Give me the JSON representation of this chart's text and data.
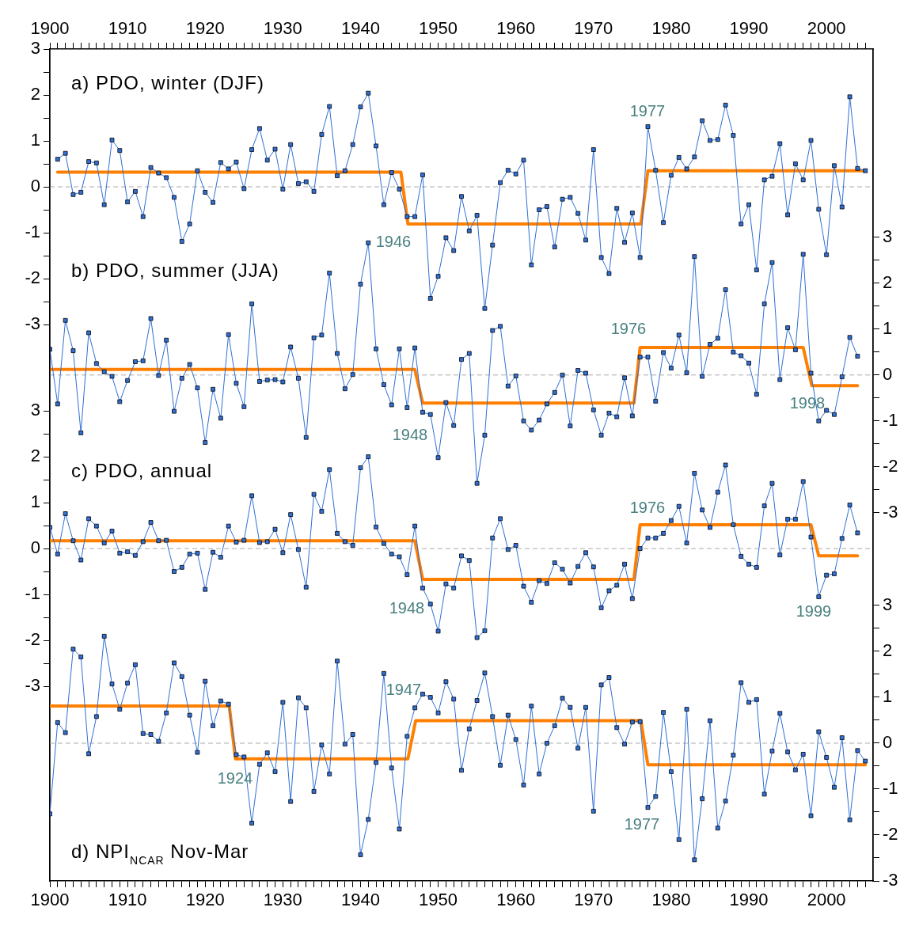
{
  "chart_data": [
    {
      "type": "line",
      "title": "a) PDO, winter (DJF)",
      "xlim": [
        1900,
        2006
      ],
      "x2lim": [
        1900,
        2006
      ],
      "x2ticks": [
        1900,
        {
          "value": 1901,
          "label": null
        },
        {
          "value": 1902,
          "label": null
        },
        {
          "value": 1903,
          "label": null
        },
        {
          "value": 1904,
          "label": null
        },
        {
          "value": 1905,
          "label": null
        },
        {
          "value": 1906,
          "label": null
        },
        {
          "value": 1907,
          "label": null
        },
        {
          "value": 1908,
          "label": null
        },
        {
          "value": 1909,
          "label": null
        },
        1910,
        {
          "value": 1911,
          "label": null
        },
        {
          "value": 1912,
          "label": null
        },
        {
          "value": 1913,
          "label": null
        },
        {
          "value": 1914,
          "label": null
        },
        {
          "value": 1915,
          "label": null
        },
        {
          "value": 1916,
          "label": null
        },
        {
          "value": 1917,
          "label": null
        },
        {
          "value": 1918,
          "label": null
        },
        {
          "value": 1919,
          "label": null
        },
        1920,
        {
          "value": 1921,
          "label": null
        },
        {
          "value": 1922,
          "label": null
        },
        {
          "value": 1923,
          "label": null
        },
        {
          "value": 1924,
          "label": null
        },
        {
          "value": 1925,
          "label": null
        },
        {
          "value": 1926,
          "label": null
        },
        {
          "value": 1927,
          "label": null
        },
        {
          "value": 1928,
          "label": null
        },
        {
          "value": 1929,
          "label": null
        },
        1930,
        {
          "value": 1931,
          "label": null
        },
        {
          "value": 1932,
          "label": null
        },
        {
          "value": 1933,
          "label": null
        },
        {
          "value": 1934,
          "label": null
        },
        {
          "value": 1935,
          "label": null
        },
        {
          "value": 1936,
          "label": null
        },
        {
          "value": 1937,
          "label": null
        },
        {
          "value": 1938,
          "label": null
        },
        {
          "value": 1939,
          "label": null
        },
        1940,
        {
          "value": 1941,
          "label": null
        },
        {
          "value": 1942,
          "label": null
        },
        {
          "value": 1943,
          "label": null
        },
        {
          "value": 1944,
          "label": null
        },
        {
          "value": 1945,
          "label": null
        },
        {
          "value": 1946,
          "label": null
        },
        {
          "value": 1947,
          "label": null
        },
        {
          "value": 1948,
          "label": null
        },
        {
          "value": 1949,
          "label": null
        },
        1950,
        {
          "value": 1951,
          "label": null
        },
        {
          "value": 1952,
          "label": null
        },
        {
          "value": 1953,
          "label": null
        },
        {
          "value": 1954,
          "label": null
        },
        {
          "value": 1955,
          "label": null
        },
        {
          "value": 1956,
          "label": null
        },
        {
          "value": 1957,
          "label": null
        },
        {
          "value": 1958,
          "label": null
        },
        {
          "value": 1959,
          "label": null
        },
        1960,
        {
          "value": 1961,
          "label": null
        },
        {
          "value": 1962,
          "label": null
        },
        {
          "value": 1963,
          "label": null
        },
        {
          "value": 1964,
          "label": null
        },
        {
          "value": 1965,
          "label": null
        },
        {
          "value": 1966,
          "label": null
        },
        {
          "value": 1967,
          "label": null
        },
        {
          "value": 1968,
          "label": null
        },
        {
          "value": 1969,
          "label": null
        },
        1970,
        {
          "value": 1971,
          "label": null
        },
        {
          "value": 1972,
          "label": null
        },
        {
          "value": 1973,
          "label": null
        },
        {
          "value": 1974,
          "label": null
        },
        {
          "value": 1975,
          "label": null
        },
        {
          "value": 1976,
          "label": null
        },
        {
          "value": 1977,
          "label": null
        },
        {
          "value": 1978,
          "label": null
        },
        {
          "value": 1979,
          "label": null
        },
        1980,
        {
          "value": 1981,
          "label": null
        },
        {
          "value": 1982,
          "label": null
        },
        {
          "value": 1983,
          "label": null
        },
        {
          "value": 1984,
          "label": null
        },
        {
          "value": 1985,
          "label": null
        },
        {
          "value": 1986,
          "label": null
        },
        {
          "value": 1987,
          "label": null
        },
        {
          "value": 1988,
          "label": null
        },
        {
          "value": 1989,
          "label": null
        },
        1990,
        {
          "value": 1991,
          "label": null
        },
        {
          "value": 1992,
          "label": null
        },
        {
          "value": 1993,
          "label": null
        },
        {
          "value": 1994,
          "label": null
        },
        {
          "value": 1995,
          "label": null
        },
        {
          "value": 1996,
          "label": null
        },
        {
          "value": 1997,
          "label": null
        },
        {
          "value": 1998,
          "label": null
        },
        {
          "value": 1999,
          "label": null
        },
        2000,
        {
          "value": 2001,
          "label": null
        },
        {
          "value": 2002,
          "label": null
        },
        {
          "value": 2003,
          "label": null
        },
        {
          "value": 2004,
          "label": null
        },
        {
          "value": 2005,
          "label": null
        }
      ],
      "ylim": [
        -15.12,
        3
      ],
      "yticks": [
        3,
        {
          "value": 2.5,
          "label": null
        },
        2,
        {
          "value": 1.5,
          "label": null
        },
        1,
        {
          "value": 0.5,
          "label": null
        },
        0,
        {
          "value": -0.5,
          "label": null
        },
        -1,
        {
          "value": -1.5,
          "label": null
        },
        -2,
        {
          "value": -2.5,
          "label": null
        },
        -3
      ],
      "tick_labels": "y",
      "series": [
        {
          "color": "#2f6fd6",
          "marker": "square",
          "x": [
            1901,
            1902,
            1903,
            1904,
            1905,
            1906,
            1907,
            1908,
            1909,
            1910,
            1911,
            1912,
            1913,
            1914,
            1915,
            1916,
            1917,
            1918,
            1919,
            1920,
            1921,
            1922,
            1923,
            1924,
            1925,
            1926,
            1927,
            1928,
            1929,
            1930,
            1931,
            1932,
            1933,
            1934,
            1935,
            1936,
            1937,
            1938,
            1939,
            1940,
            1941,
            1942,
            1943,
            1944,
            1945,
            1946,
            1947,
            1948,
            1949,
            1950,
            1951,
            1952,
            1953,
            1954,
            1955,
            1956,
            1957,
            1958,
            1959,
            1960,
            1961,
            1962,
            1963,
            1964,
            1965,
            1966,
            1967,
            1968,
            1969,
            1970,
            1971,
            1972,
            1973,
            1974,
            1975,
            1976,
            1977,
            1978,
            1979,
            1980,
            1981,
            1982,
            1983,
            1984,
            1985,
            1986,
            1987,
            1988,
            1989,
            1990,
            1991,
            1992,
            1993,
            1994,
            1995,
            1996,
            1997,
            1998,
            1999,
            2000,
            2001,
            2002,
            2003,
            2004,
            2005
          ],
          "values": [
            0.6,
            0.73,
            -0.17,
            -0.12,
            0.55,
            0.52,
            -0.39,
            1.02,
            0.79,
            -0.33,
            -0.1,
            -0.65,
            0.42,
            0.3,
            0.2,
            -0.23,
            -1.19,
            -0.81,
            0.35,
            -0.12,
            -0.34,
            0.53,
            0.39,
            0.54,
            -0.04,
            0.81,
            1.27,
            0.58,
            0.82,
            -0.05,
            0.92,
            0.07,
            0.11,
            -0.1,
            1.14,
            1.75,
            0.24,
            0.35,
            0.92,
            1.74,
            2.04,
            0.89,
            -0.39,
            0.31,
            -0.05,
            -0.65,
            -0.65,
            0.26,
            -2.43,
            -1.95,
            -1.11,
            -1.39,
            -0.21,
            -0.96,
            -0.62,
            -2.65,
            -1.27,
            0.09,
            0.36,
            0.28,
            0.58,
            -1.7,
            -0.5,
            -0.43,
            -1.31,
            -0.27,
            -0.23,
            -0.58,
            -1.16,
            0.81,
            -1.54,
            -1.89,
            -0.47,
            -1.21,
            -0.57,
            -1.54,
            1.31,
            0.36,
            -0.78,
            0.25,
            0.64,
            0.39,
            0.65,
            1.44,
            1.01,
            1.03,
            1.78,
            1.12,
            -0.81,
            -0.39,
            -1.81,
            0.15,
            0.23,
            0.94,
            -0.61,
            0.5,
            0.15,
            1.01,
            -0.49,
            -1.48,
            0.46,
            -0.44,
            1.96,
            0.4,
            0.35
          ]
        },
        {
          "type": "line",
          "color": "#ff7f00",
          "marker": "none",
          "x": [
            1901,
            1945.2,
            1946.1,
            1976.1,
            1977,
            2005
          ],
          "values": [
            0.32,
            0.32,
            -0.81,
            -0.81,
            0.35,
            0.35
          ]
        }
      ],
      "ref_lines": [
        {
          "axis": "y",
          "value": 0,
          "color": "#aaaaaa",
          "line_style": "dashed"
        }
      ],
      "annotations": [
        "1946",
        "1977"
      ]
    },
    {
      "type": "line",
      "title": "b) PDO, summer (JJA)",
      "xlim": [
        1900,
        2006
      ],
      "y2lim": [
        -11.02,
        7.1
      ],
      "y2ticks": [
        3,
        {
          "value": 2.5,
          "label": null
        },
        2,
        {
          "value": 1.5,
          "label": null
        },
        1,
        {
          "value": 0.5,
          "label": null
        },
        0,
        {
          "value": -0.5,
          "label": null
        },
        -1,
        {
          "value": -1.5,
          "label": null
        },
        -2,
        {
          "value": -2.5,
          "label": null
        },
        -3
      ],
      "tick_labels": "y",
      "series": [
        {
          "color": "#2f6fd6",
          "marker": "square",
          "axis": "y2",
          "x": [
            1900,
            1901,
            1902,
            1903,
            1904,
            1905,
            1906,
            1907,
            1908,
            1909,
            1910,
            1911,
            1912,
            1913,
            1914,
            1915,
            1916,
            1917,
            1918,
            1919,
            1920,
            1921,
            1922,
            1923,
            1924,
            1925,
            1926,
            1927,
            1928,
            1929,
            1930,
            1931,
            1932,
            1933,
            1934,
            1935,
            1936,
            1937,
            1938,
            1939,
            1940,
            1941,
            1942,
            1943,
            1944,
            1945,
            1946,
            1947,
            1948,
            1949,
            1950,
            1951,
            1952,
            1953,
            1954,
            1955,
            1956,
            1957,
            1958,
            1959,
            1960,
            1961,
            1962,
            1963,
            1964,
            1965,
            1966,
            1967,
            1968,
            1969,
            1970,
            1971,
            1972,
            1973,
            1974,
            1975,
            1976,
            1977,
            1978,
            1979,
            1980,
            1981,
            1982,
            1983,
            1984,
            1985,
            1986,
            1987,
            1988,
            1989,
            1990,
            1991,
            1992,
            1993,
            1994,
            1995,
            1996,
            1997,
            1998,
            1999,
            2000,
            2001,
            2002,
            2003,
            2004
          ],
          "values": [
            0.56,
            -0.63,
            1.19,
            0.53,
            -1.26,
            0.92,
            0.25,
            0.07,
            -0.03,
            -0.58,
            -0.12,
            0.29,
            0.31,
            1.23,
            -0.01,
            0.76,
            -0.79,
            -0.07,
            0.23,
            -0.28,
            -1.47,
            -0.31,
            -0.94,
            0.88,
            -0.18,
            -0.69,
            1.55,
            -0.14,
            -0.11,
            -0.1,
            -0.15,
            0.61,
            -0.07,
            -1.36,
            0.81,
            0.87,
            2.22,
            0.47,
            -0.3,
            0.01,
            1.98,
            2.88,
            0.57,
            -0.21,
            -0.65,
            0.57,
            -0.71,
            0.59,
            -0.81,
            -0.86,
            -1.8,
            -0.6,
            -1.1,
            0.34,
            0.47,
            -2.36,
            -1.31,
            0.97,
            1.06,
            -0.24,
            -0.02,
            -1.0,
            -1.2,
            -0.98,
            -0.63,
            -0.38,
            0.0,
            -1.11,
            0.1,
            0.04,
            -0.76,
            -1.31,
            -0.83,
            -0.91,
            -0.06,
            -0.89,
            0.39,
            0.39,
            -0.57,
            0.49,
            0.15,
            0.87,
            0.05,
            2.58,
            -0.03,
            0.67,
            0.8,
            1.86,
            0.5,
            0.42,
            0.26,
            -0.42,
            1.55,
            2.45,
            -0.1,
            1.03,
            0.55,
            2.63,
            0.04,
            -1.0,
            -0.77,
            -0.86,
            -0.04,
            0.82,
            0.41
          ]
        },
        {
          "type": "line",
          "color": "#ff7f00",
          "marker": "none",
          "axis": "y2",
          "x": [
            1900,
            1947,
            1948,
            1975.2,
            1976,
            1997,
            1998.1,
            2004
          ],
          "values": [
            0.12,
            0.12,
            -0.61,
            -0.61,
            0.6,
            0.6,
            -0.23,
            -0.23
          ]
        }
      ],
      "ref_lines": [
        {
          "axis": "y2",
          "value": 0,
          "color": "#aaaaaa",
          "line_style": "dashed"
        }
      ],
      "annotations": [
        "1948",
        "1976",
        "1998"
      ]
    },
    {
      "type": "line",
      "title": "c) PDO, annual",
      "xlim": [
        1900,
        2006
      ],
      "ylim": [
        -7.24,
        10.88
      ],
      "yticks": [
        3,
        {
          "value": 2.5,
          "label": null
        },
        2,
        {
          "value": 1.5,
          "label": null
        },
        1,
        {
          "value": 0.5,
          "label": null
        },
        0,
        {
          "value": -0.5,
          "label": null
        },
        -1,
        {
          "value": -1.5,
          "label": null
        },
        -2,
        {
          "value": -2.5,
          "label": null
        },
        -3
      ],
      "tick_labels": "y",
      "series": [
        {
          "color": "#2f6fd6",
          "marker": "square",
          "x": [
            1900,
            1901,
            1902,
            1903,
            1904,
            1905,
            1906,
            1907,
            1908,
            1909,
            1910,
            1911,
            1912,
            1913,
            1914,
            1915,
            1916,
            1917,
            1918,
            1919,
            1920,
            1921,
            1922,
            1923,
            1924,
            1925,
            1926,
            1927,
            1928,
            1929,
            1930,
            1931,
            1932,
            1933,
            1934,
            1935,
            1936,
            1937,
            1938,
            1939,
            1940,
            1941,
            1942,
            1943,
            1944,
            1945,
            1946,
            1947,
            1948,
            1949,
            1950,
            1951,
            1952,
            1953,
            1954,
            1955,
            1956,
            1957,
            1958,
            1959,
            1960,
            1961,
            1962,
            1963,
            1964,
            1965,
            1966,
            1967,
            1968,
            1969,
            1970,
            1971,
            1972,
            1973,
            1974,
            1975,
            1976,
            1977,
            1978,
            1979,
            1980,
            1981,
            1982,
            1983,
            1984,
            1985,
            1986,
            1987,
            1988,
            1989,
            1990,
            1991,
            1992,
            1993,
            1994,
            1995,
            1996,
            1997,
            1998,
            1999,
            2000,
            2001,
            2002,
            2003,
            2004
          ],
          "values": [
            0.46,
            -0.12,
            0.76,
            0.17,
            -0.25,
            0.65,
            0.49,
            0.12,
            0.38,
            -0.1,
            -0.07,
            -0.15,
            0.15,
            0.57,
            0.17,
            0.18,
            -0.5,
            -0.41,
            -0.12,
            -0.1,
            -0.89,
            -0.08,
            -0.19,
            0.49,
            0.14,
            0.18,
            1.15,
            0.13,
            0.15,
            0.42,
            -0.09,
            0.74,
            -0.02,
            -0.84,
            1.18,
            0.81,
            1.72,
            0.33,
            0.15,
            0.07,
            1.76,
            2.0,
            0.47,
            0.11,
            -0.12,
            -0.18,
            -0.57,
            0.49,
            -0.86,
            -1.21,
            -1.8,
            -0.77,
            -0.86,
            -0.16,
            -0.26,
            -1.94,
            -1.79,
            0.23,
            0.65,
            -0.02,
            0.07,
            -0.82,
            -1.17,
            -0.7,
            -0.76,
            -0.31,
            -0.45,
            -0.75,
            -0.39,
            -0.09,
            -0.4,
            -1.29,
            -0.92,
            -0.8,
            -0.34,
            -1.09,
            0.0,
            0.23,
            0.23,
            0.33,
            0.61,
            0.92,
            0.12,
            1.64,
            0.84,
            0.46,
            1.23,
            1.82,
            0.52,
            -0.17,
            -0.34,
            -0.41,
            0.93,
            1.42,
            -0.14,
            0.64,
            0.64,
            1.46,
            0.25,
            -1.05,
            -0.58,
            -0.55,
            0.22,
            0.95,
            0.34
          ]
        },
        {
          "type": "line",
          "color": "#ff7f00",
          "marker": "none",
          "x": [
            1900,
            1947,
            1948,
            1975.2,
            1976,
            1998,
            1999,
            2004
          ],
          "values": [
            0.17,
            0.17,
            -0.67,
            -0.67,
            0.52,
            0.52,
            -0.16,
            -0.16
          ]
        }
      ],
      "ref_lines": [
        {
          "axis": "y",
          "value": 0,
          "color": "#aaaaaa",
          "line_style": "dashed"
        }
      ],
      "annotations": [
        "1948",
        "1976",
        "1999"
      ]
    },
    {
      "type": "line",
      "title": "d) NPI$_{NCAR}$ Nov-Mar",
      "xlim": [
        1900,
        2006
      ],
      "xticks": [
        1900,
        {
          "value": 1901,
          "label": null
        },
        {
          "value": 1902,
          "label": null
        },
        {
          "value": 1903,
          "label": null
        },
        {
          "value": 1904,
          "label": null
        },
        {
          "value": 1905,
          "label": null
        },
        {
          "value": 1906,
          "label": null
        },
        {
          "value": 1907,
          "label": null
        },
        {
          "value": 1908,
          "label": null
        },
        {
          "value": 1909,
          "label": null
        },
        1910,
        {
          "value": 1911,
          "label": null
        },
        {
          "value": 1912,
          "label": null
        },
        {
          "value": 1913,
          "label": null
        },
        {
          "value": 1914,
          "label": null
        },
        {
          "value": 1915,
          "label": null
        },
        {
          "value": 1916,
          "label": null
        },
        {
          "value": 1917,
          "label": null
        },
        {
          "value": 1918,
          "label": null
        },
        {
          "value": 1919,
          "label": null
        },
        1920,
        {
          "value": 1921,
          "label": null
        },
        {
          "value": 1922,
          "label": null
        },
        {
          "value": 1923,
          "label": null
        },
        {
          "value": 1924,
          "label": null
        },
        {
          "value": 1925,
          "label": null
        },
        {
          "value": 1926,
          "label": null
        },
        {
          "value": 1927,
          "label": null
        },
        {
          "value": 1928,
          "label": null
        },
        {
          "value": 1929,
          "label": null
        },
        1930,
        {
          "value": 1931,
          "label": null
        },
        {
          "value": 1932,
          "label": null
        },
        {
          "value": 1933,
          "label": null
        },
        {
          "value": 1934,
          "label": null
        },
        {
          "value": 1935,
          "label": null
        },
        {
          "value": 1936,
          "label": null
        },
        {
          "value": 1937,
          "label": null
        },
        {
          "value": 1938,
          "label": null
        },
        {
          "value": 1939,
          "label": null
        },
        1940,
        {
          "value": 1941,
          "label": null
        },
        {
          "value": 1942,
          "label": null
        },
        {
          "value": 1943,
          "label": null
        },
        {
          "value": 1944,
          "label": null
        },
        {
          "value": 1945,
          "label": null
        },
        {
          "value": 1946,
          "label": null
        },
        {
          "value": 1947,
          "label": null
        },
        {
          "value": 1948,
          "label": null
        },
        {
          "value": 1949,
          "label": null
        },
        1950,
        {
          "value": 1951,
          "label": null
        },
        {
          "value": 1952,
          "label": null
        },
        {
          "value": 1953,
          "label": null
        },
        {
          "value": 1954,
          "label": null
        },
        {
          "value": 1955,
          "label": null
        },
        {
          "value": 1956,
          "label": null
        },
        {
          "value": 1957,
          "label": null
        },
        {
          "value": 1958,
          "label": null
        },
        {
          "value": 1959,
          "label": null
        },
        1960,
        {
          "value": 1961,
          "label": null
        },
        {
          "value": 1962,
          "label": null
        },
        {
          "value": 1963,
          "label": null
        },
        {
          "value": 1964,
          "label": null
        },
        {
          "value": 1965,
          "label": null
        },
        {
          "value": 1966,
          "label": null
        },
        {
          "value": 1967,
          "label": null
        },
        {
          "value": 1968,
          "label": null
        },
        {
          "value": 1969,
          "label": null
        },
        1970,
        {
          "value": 1971,
          "label": null
        },
        {
          "value": 1972,
          "label": null
        },
        {
          "value": 1973,
          "label": null
        },
        {
          "value": 1974,
          "label": null
        },
        {
          "value": 1975,
          "label": null
        },
        {
          "value": 1976,
          "label": null
        },
        {
          "value": 1977,
          "label": null
        },
        {
          "value": 1978,
          "label": null
        },
        {
          "value": 1979,
          "label": null
        },
        1980,
        {
          "value": 1981,
          "label": null
        },
        {
          "value": 1982,
          "label": null
        },
        {
          "value": 1983,
          "label": null
        },
        {
          "value": 1984,
          "label": null
        },
        {
          "value": 1985,
          "label": null
        },
        {
          "value": 1986,
          "label": null
        },
        {
          "value": 1987,
          "label": null
        },
        {
          "value": 1988,
          "label": null
        },
        {
          "value": 1989,
          "label": null
        },
        1990,
        {
          "value": 1991,
          "label": null
        },
        {
          "value": 1992,
          "label": null
        },
        {
          "value": 1993,
          "label": null
        },
        {
          "value": 1994,
          "label": null
        },
        {
          "value": 1995,
          "label": null
        },
        {
          "value": 1996,
          "label": null
        },
        {
          "value": 1997,
          "label": null
        },
        {
          "value": 1998,
          "label": null
        },
        {
          "value": 1999,
          "label": null
        },
        2000,
        {
          "value": 2001,
          "label": null
        },
        {
          "value": 2002,
          "label": null
        },
        {
          "value": 2003,
          "label": null
        },
        {
          "value": 2004,
          "label": null
        },
        {
          "value": 2005,
          "label": null
        }
      ],
      "y2lim": [
        -3,
        15.12
      ],
      "y2ticks": [
        3,
        {
          "value": 2.5,
          "label": null
        },
        2,
        {
          "value": 1.5,
          "label": null
        },
        1,
        {
          "value": 0.5,
          "label": null
        },
        0,
        {
          "value": -0.5,
          "label": null
        },
        -1,
        {
          "value": -1.5,
          "label": null
        },
        -2,
        {
          "value": -2.5,
          "label": null
        },
        -3
      ],
      "series": [
        {
          "color": "#2f6fd6",
          "marker": "square",
          "axis": "y2",
          "x": [
            1900,
            1901,
            1902,
            1903,
            1904,
            1905,
            1906,
            1907,
            1908,
            1909,
            1910,
            1911,
            1912,
            1913,
            1914,
            1915,
            1916,
            1917,
            1918,
            1919,
            1920,
            1921,
            1922,
            1923,
            1924,
            1925,
            1926,
            1927,
            1928,
            1929,
            1930,
            1931,
            1932,
            1933,
            1934,
            1935,
            1936,
            1937,
            1938,
            1939,
            1940,
            1941,
            1942,
            1943,
            1944,
            1945,
            1946,
            1947,
            1948,
            1949,
            1950,
            1951,
            1952,
            1953,
            1954,
            1955,
            1956,
            1957,
            1958,
            1959,
            1960,
            1961,
            1962,
            1963,
            1964,
            1965,
            1966,
            1967,
            1968,
            1969,
            1970,
            1971,
            1972,
            1973,
            1974,
            1975,
            1976,
            1977,
            1978,
            1979,
            1980,
            1981,
            1982,
            1983,
            1984,
            1985,
            1986,
            1987,
            1988,
            1989,
            1990,
            1991,
            1992,
            1993,
            1994,
            1995,
            1996,
            1997,
            1998,
            1999,
            2000,
            2001,
            2002,
            2003,
            2004,
            2005
          ],
          "values": [
            -1.54,
            0.45,
            0.23,
            2.05,
            1.88,
            -0.23,
            0.58,
            2.33,
            1.29,
            0.74,
            1.31,
            1.71,
            0.21,
            0.19,
            0.04,
            0.66,
            1.75,
            1.45,
            0.61,
            -0.2,
            1.35,
            0.38,
            0.92,
            0.85,
            -0.25,
            -0.3,
            -1.74,
            -0.46,
            -0.21,
            -0.62,
            0.89,
            -1.27,
            0.99,
            0.77,
            -1.05,
            -0.04,
            -0.67,
            1.79,
            -0.02,
            0.19,
            -2.43,
            -1.66,
            -0.42,
            1.52,
            -0.54,
            -1.87,
            0.15,
            0.77,
            1.07,
            1.0,
            0.66,
            1.34,
            0.96,
            -0.59,
            0.31,
            0.93,
            1.53,
            0.58,
            -0.48,
            0.61,
            0.08,
            -0.91,
            0.81,
            -0.67,
            0.0,
            0.38,
            0.98,
            0.78,
            -0.11,
            0.78,
            -1.48,
            1.27,
            1.43,
            0.34,
            -0.02,
            0.46,
            0.47,
            -1.4,
            -1.16,
            0.67,
            -0.62,
            -2.1,
            0.74,
            -2.54,
            -1.21,
            0.49,
            -1.85,
            -1.26,
            -0.26,
            1.32,
            0.89,
            0.95,
            -1.11,
            -0.17,
            0.65,
            -0.19,
            -0.58,
            -0.24,
            -1.58,
            0.25,
            -0.31,
            -0.96,
            0.12,
            -1.67,
            -0.16,
            -0.39
          ]
        },
        {
          "type": "line",
          "color": "#ff7f00",
          "marker": "none",
          "axis": "y2",
          "x": [
            1900,
            1923.1,
            1923.9,
            1946.1,
            1947.1,
            1976.1,
            1977,
            2005
          ],
          "values": [
            0.81,
            0.81,
            -0.34,
            -0.34,
            0.49,
            0.49,
            -0.47,
            -0.47
          ]
        }
      ],
      "ref_lines": [
        {
          "axis": "y2",
          "value": 0,
          "color": "#aaaaaa",
          "line_style": "dashed"
        }
      ],
      "annotations": [
        "1924",
        "1947",
        "1977"
      ]
    }
  ]
}
